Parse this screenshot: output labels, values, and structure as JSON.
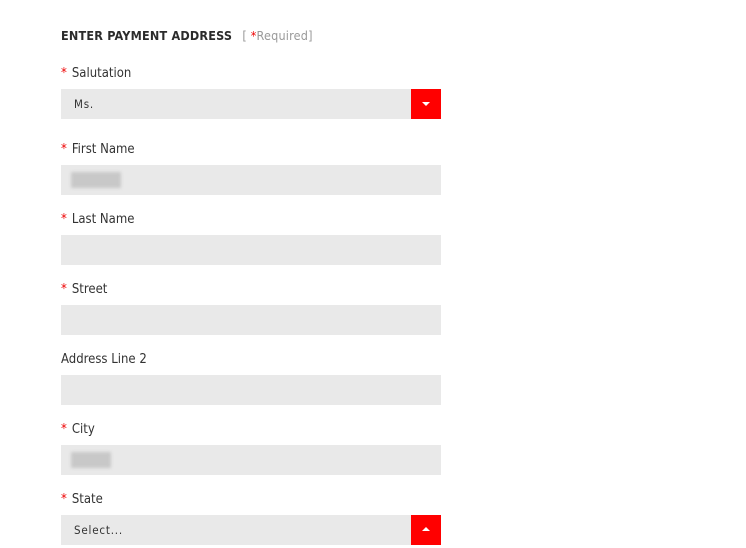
{
  "header": {
    "title": "ENTER PAYMENT ADDRESS",
    "required_note_open": "[ ",
    "required_star": "*",
    "required_note_text": "Required]"
  },
  "fields": [
    {
      "label": "Salutation",
      "required": true,
      "type": "select",
      "value": "Ms.",
      "arrow": "down"
    },
    {
      "label": "First Name",
      "required": true,
      "type": "text",
      "value": ""
    },
    {
      "label": "Last Name",
      "required": true,
      "type": "text",
      "value": ""
    },
    {
      "label": "Street",
      "required": true,
      "type": "text",
      "value": ""
    },
    {
      "label": "Address Line 2",
      "required": false,
      "type": "text",
      "value": ""
    },
    {
      "label": "City",
      "required": true,
      "type": "text",
      "value": ""
    },
    {
      "label": "State",
      "required": true,
      "type": "select",
      "value": "Select...",
      "arrow": "up"
    }
  ],
  "colors": {
    "accent": "#ff0000",
    "field_bg": "#e9e9e9"
  }
}
